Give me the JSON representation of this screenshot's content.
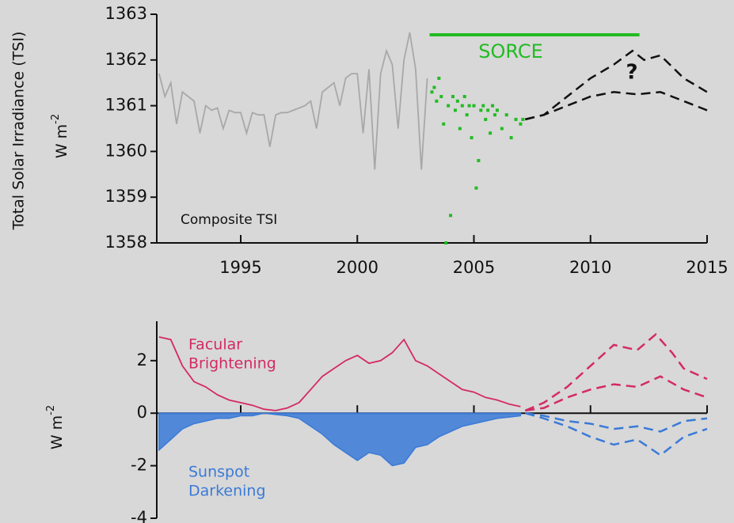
{
  "chart_data": [
    {
      "type": "line",
      "ylabel": "Total Solar Irradiance (TSI)",
      "yunit": {
        "base": "W m",
        "exponent": "-2"
      },
      "annotations": [
        "Composite TSI",
        "?"
      ],
      "xlim": [
        1991.4,
        2015
      ],
      "xticks": [
        1995,
        2000,
        2005,
        2010,
        2015
      ],
      "ylim": [
        1358,
        1363
      ],
      "yticks": [
        1358,
        1359,
        1360,
        1361,
        1362,
        1363
      ],
      "spans": [
        {
          "label": "SORCE",
          "x": [
            2003.1,
            2012.1
          ],
          "y": 1362.55,
          "color": "#22bb22"
        }
      ],
      "series": [
        {
          "color": "#a8a8a8",
          "mode": "line",
          "x": [
            1991.5,
            1991.75,
            1992,
            1992.25,
            1992.5,
            1992.75,
            1993,
            1993.25,
            1993.5,
            1993.75,
            1994,
            1994.25,
            1994.5,
            1994.75,
            1995,
            1995.25,
            1995.5,
            1995.75,
            1996,
            1996.25,
            1996.5,
            1996.75,
            1997,
            1997.25,
            1997.5,
            1997.75,
            1998,
            1998.25,
            1998.5,
            1998.75,
            1999,
            1999.25,
            1999.5,
            1999.75,
            2000,
            2000.25,
            2000.5,
            2000.75,
            2001,
            2001.25,
            2001.5,
            2001.75,
            2002,
            2002.25,
            2002.5,
            2002.75,
            2003
          ],
          "values": [
            1361.7,
            1361.2,
            1361.5,
            1360.6,
            1361.3,
            1361.2,
            1361.1,
            1360.4,
            1361.0,
            1360.9,
            1360.95,
            1360.5,
            1360.9,
            1360.85,
            1360.85,
            1360.4,
            1360.85,
            1360.8,
            1360.8,
            1360.1,
            1360.8,
            1360.85,
            1360.85,
            1360.9,
            1360.95,
            1361.0,
            1361.1,
            1360.5,
            1361.3,
            1361.4,
            1361.5,
            1361.0,
            1361.6,
            1361.7,
            1361.7,
            1360.4,
            1361.8,
            1359.6,
            1361.7,
            1362.2,
            1361.9,
            1360.5,
            1362.0,
            1362.6,
            1361.8,
            1359.6,
            1361.6
          ]
        },
        {
          "color": "#22bb22",
          "mode": "markers",
          "x": [
            2003.2,
            2003.3,
            2003.4,
            2003.5,
            2003.6,
            2003.7,
            2003.8,
            2003.9,
            2004.0,
            2004.1,
            2004.2,
            2004.3,
            2004.4,
            2004.5,
            2004.6,
            2004.7,
            2004.8,
            2004.9,
            2005.0,
            2005.1,
            2005.2,
            2005.3,
            2005.4,
            2005.5,
            2005.6,
            2005.7,
            2005.8,
            2005.9,
            2006.0,
            2006.2,
            2006.4,
            2006.6,
            2006.8,
            2007.0,
            2007.1
          ],
          "values": [
            1361.3,
            1361.4,
            1361.1,
            1361.6,
            1361.2,
            1360.6,
            1358.0,
            1361.0,
            1358.6,
            1361.2,
            1360.9,
            1361.1,
            1360.5,
            1361.0,
            1361.2,
            1360.8,
            1361.0,
            1360.3,
            1361.0,
            1359.2,
            1359.8,
            1360.9,
            1361.0,
            1360.7,
            1360.9,
            1360.4,
            1361.0,
            1360.8,
            1360.9,
            1360.5,
            1360.8,
            1360.3,
            1360.7,
            1360.6,
            1360.7
          ]
        },
        {
          "color": "#111111",
          "mode": "line",
          "dash": true,
          "x": [
            2007.2,
            2008,
            2009,
            2010,
            2011,
            2011.8,
            2012.3,
            2013,
            2014,
            2015
          ],
          "values": [
            1360.7,
            1360.8,
            1361.2,
            1361.6,
            1361.9,
            1362.2,
            1362.0,
            1362.1,
            1361.6,
            1361.3
          ]
        },
        {
          "color": "#111111",
          "mode": "line",
          "dash": true,
          "x": [
            2007.2,
            2008,
            2009,
            2010,
            2011,
            2012,
            2013,
            2014,
            2015
          ],
          "values": [
            1360.7,
            1360.8,
            1361.0,
            1361.2,
            1361.3,
            1361.25,
            1361.3,
            1361.1,
            1360.9
          ]
        }
      ]
    },
    {
      "type": "line",
      "yunit": {
        "base": "W m",
        "exponent": "-2"
      },
      "xlim": [
        1991.4,
        2015
      ],
      "xticks": [
        1995,
        2000,
        2005,
        2010,
        2015
      ],
      "ylim": [
        -4,
        3.5
      ],
      "yticks": [
        -4,
        -2,
        0,
        2
      ],
      "series": [
        {
          "name": [
            "Facular",
            "Brightening"
          ],
          "color": "#d42a63",
          "mode": "line",
          "x": [
            1991.5,
            1992,
            1992.5,
            1993,
            1993.5,
            1994,
            1994.5,
            1995,
            1995.5,
            1996,
            1996.5,
            1997,
            1997.5,
            1998,
            1998.5,
            1999,
            1999.5,
            2000,
            2000.5,
            2001,
            2001.5,
            2002,
            2002.5,
            2003,
            2003.5,
            2004,
            2004.5,
            2005,
            2005.5,
            2006,
            2006.5,
            2007
          ],
          "values": [
            2.9,
            2.8,
            1.8,
            1.2,
            1.0,
            0.7,
            0.5,
            0.4,
            0.3,
            0.15,
            0.1,
            0.2,
            0.4,
            0.9,
            1.4,
            1.7,
            2.0,
            2.2,
            1.9,
            2.0,
            2.3,
            2.8,
            2.0,
            1.8,
            1.5,
            1.2,
            0.9,
            0.8,
            0.6,
            0.5,
            0.35,
            0.25
          ]
        },
        {
          "name": [
            "Sunspot",
            "Darkening"
          ],
          "color": "#3a7ad8",
          "mode": "area",
          "x": [
            1991.5,
            1992,
            1992.5,
            1993,
            1993.5,
            1994,
            1994.5,
            1995,
            1995.5,
            1996,
            1996.5,
            1997,
            1997.5,
            1998,
            1998.5,
            1999,
            1999.5,
            2000,
            2000.5,
            2001,
            2001.5,
            2002,
            2002.5,
            2003,
            2003.5,
            2004,
            2004.5,
            2005,
            2005.5,
            2006,
            2006.5,
            2007
          ],
          "values": [
            -1.4,
            -1.0,
            -0.6,
            -0.4,
            -0.3,
            -0.2,
            -0.2,
            -0.1,
            -0.1,
            0,
            -0.05,
            -0.1,
            -0.2,
            -0.5,
            -0.8,
            -1.2,
            -1.5,
            -1.8,
            -1.5,
            -1.6,
            -2.0,
            -1.9,
            -1.3,
            -1.2,
            -0.9,
            -0.7,
            -0.5,
            -0.4,
            -0.3,
            -0.2,
            -0.15,
            -0.1
          ]
        },
        {
          "color": "#d42a63",
          "mode": "line",
          "dash": true,
          "x": [
            2007.2,
            2008,
            2009,
            2010,
            2011,
            2012,
            2012.8,
            2013.5,
            2014,
            2015
          ],
          "values": [
            0.1,
            0.4,
            1.0,
            1.8,
            2.6,
            2.4,
            3.0,
            2.3,
            1.7,
            1.3
          ]
        },
        {
          "color": "#d42a63",
          "mode": "line",
          "dash": true,
          "x": [
            2007.2,
            2008,
            2009,
            2010,
            2011,
            2012,
            2013,
            2014,
            2015
          ],
          "values": [
            0.1,
            0.2,
            0.6,
            0.9,
            1.1,
            1.0,
            1.4,
            0.9,
            0.6
          ]
        },
        {
          "color": "#3a7ad8",
          "mode": "line",
          "dash": true,
          "x": [
            2007.2,
            2008,
            2009,
            2010,
            2011,
            2012,
            2013,
            2014,
            2015
          ],
          "values": [
            0,
            -0.1,
            -0.3,
            -0.4,
            -0.6,
            -0.5,
            -0.7,
            -0.3,
            -0.2
          ]
        },
        {
          "color": "#3a7ad8",
          "mode": "line",
          "dash": true,
          "x": [
            2007.2,
            2008,
            2009,
            2010,
            2011,
            2012,
            2013,
            2014,
            2015
          ],
          "values": [
            0,
            -0.2,
            -0.5,
            -0.9,
            -1.2,
            -1.0,
            -1.6,
            -0.9,
            -0.6
          ]
        }
      ]
    }
  ]
}
